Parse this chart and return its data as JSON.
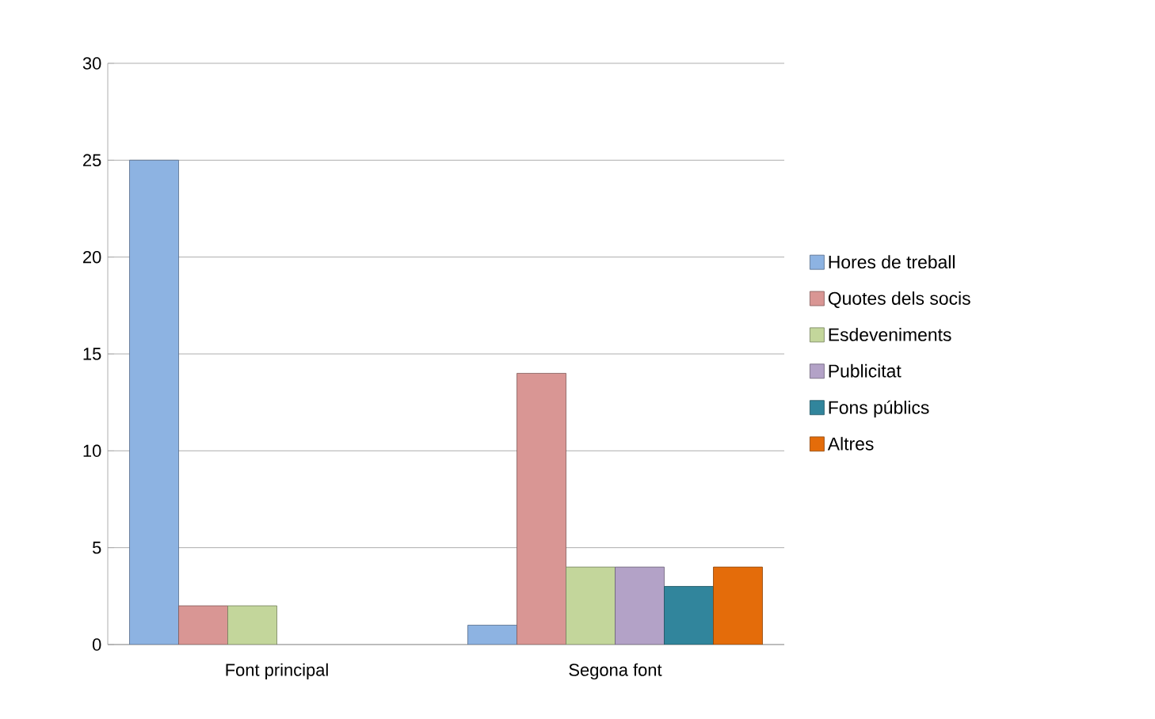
{
  "chart_data": {
    "type": "bar",
    "categories": [
      "Font principal",
      "Segona font"
    ],
    "series": [
      {
        "name": "Hores de treball",
        "color": "#8db3e2",
        "values": [
          25,
          1
        ]
      },
      {
        "name": "Quotes dels socis",
        "color": "#d99694",
        "values": [
          2,
          14
        ]
      },
      {
        "name": "Esdeveniments",
        "color": "#c3d69b",
        "values": [
          2,
          4
        ]
      },
      {
        "name": "Publicitat",
        "color": "#b3a2c7",
        "values": [
          null,
          4
        ]
      },
      {
        "name": "Fons públics",
        "color": "#31859c",
        "values": [
          null,
          3
        ]
      },
      {
        "name": "Altres",
        "color": "#e46c0a",
        "values": [
          null,
          4
        ]
      }
    ],
    "ylim": [
      0,
      30
    ],
    "yticks": [
      0,
      5,
      10,
      15,
      20,
      25,
      30
    ],
    "grid": "y",
    "legend": "right"
  }
}
